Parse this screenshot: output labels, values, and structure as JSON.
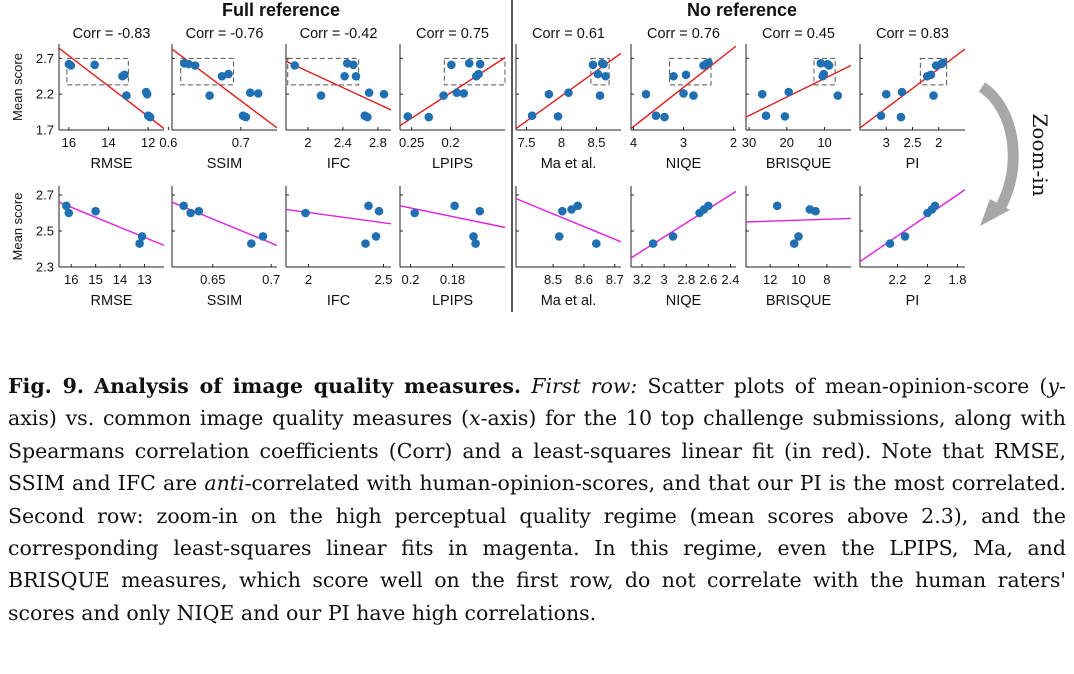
{
  "figure": {
    "group_titles": [
      "Full reference",
      "No reference"
    ],
    "zoom_label": "Zoom-in",
    "colors": {
      "points": "#1f6fb2",
      "fit_row1": "#e01b1b",
      "fit_row2": "#e020e0",
      "zoom_arrow": "#a7a7a7"
    }
  },
  "caption": {
    "fig_label": "Fig. 9.",
    "title": "Analysis of image quality measures.",
    "first_row_label": "First row:",
    "p1": "Scatter plots of mean-opinion-score (",
    "y_var": "y",
    "p2": "-axis) vs. common image quality measures (",
    "x_var": "x",
    "p3": "-axis) for the 10 top challenge submissions, along with Spearmans correlation coefficients (Corr) and a least-squares linear fit (in red). Note that RMSE, SSIM and IFC are ",
    "anti": "anti",
    "p4": "-correlated with human-opinion-scores, and that our PI is the most correlated. Second row: zoom-in on the high perceptual quality regime (mean scores above 2.3), and the corresponding least-squares linear fits in magenta. In this regime, even the LPIPS, Ma, and BRISQUE measures, which score well on the first row, do not correlate with the human raters' scores and only NIQE and our PI have high correlations."
  },
  "chart_data": [
    {
      "type": "scatter",
      "title": "Corr = -0.83",
      "xlabel": "RMSE",
      "ylabel": "Mean score",
      "xlim": [
        16.5,
        11.2
      ],
      "ylim": [
        1.7,
        2.9
      ],
      "xticks": [
        16,
        14,
        12
      ],
      "xtick_labels": [
        "16",
        "14",
        "12"
      ],
      "yticks": [
        1.7,
        2.2,
        2.7
      ],
      "ytick_labels": [
        "1.7",
        "2.2",
        "2.7"
      ],
      "points": [
        [
          16.0,
          2.62
        ],
        [
          15.9,
          2.6
        ],
        [
          14.7,
          2.61
        ],
        [
          13.3,
          2.45
        ],
        [
          13.2,
          2.47
        ],
        [
          13.1,
          2.18
        ],
        [
          12.1,
          2.23
        ],
        [
          12.05,
          2.2
        ],
        [
          12.0,
          1.9
        ],
        [
          11.9,
          1.88
        ]
      ],
      "fit": [
        [
          16.5,
          2.84
        ],
        [
          11.2,
          1.72
        ]
      ],
      "zoom_box": [
        16.1,
        13.0,
        2.33,
        2.7
      ]
    },
    {
      "type": "scatter",
      "title": "Corr = -0.76",
      "xlabel": "SSIM",
      "ylabel": "",
      "xlim": [
        0.605,
        0.75
      ],
      "ylim": [
        1.7,
        2.9
      ],
      "xticks": [
        0.6,
        0.7
      ],
      "xtick_labels": [
        "0.6",
        "0.7"
      ],
      "yticks": [
        1.7,
        2.2,
        2.7
      ],
      "ytick_labels": [],
      "points": [
        [
          0.622,
          2.63
        ],
        [
          0.628,
          2.62
        ],
        [
          0.637,
          2.6
        ],
        [
          0.657,
          2.18
        ],
        [
          0.674,
          2.45
        ],
        [
          0.683,
          2.48
        ],
        [
          0.703,
          1.9
        ],
        [
          0.707,
          1.88
        ],
        [
          0.713,
          2.22
        ],
        [
          0.724,
          2.21
        ]
      ],
      "fit": [
        [
          0.605,
          2.83
        ],
        [
          0.75,
          1.73
        ]
      ],
      "zoom_box": [
        0.617,
        0.69,
        2.33,
        2.7
      ]
    },
    {
      "type": "scatter",
      "title": "Corr = -0.42",
      "xlabel": "IFC",
      "ylabel": "",
      "xlim": [
        1.75,
        2.95
      ],
      "ylim": [
        1.7,
        2.9
      ],
      "xticks": [
        2,
        2.4,
        2.8
      ],
      "xtick_labels": [
        "2",
        "2.4",
        "2.8"
      ],
      "yticks": [
        1.7,
        2.2,
        2.7
      ],
      "ytick_labels": [],
      "points": [
        [
          1.85,
          2.6
        ],
        [
          2.15,
          2.18
        ],
        [
          2.42,
          2.45
        ],
        [
          2.45,
          2.63
        ],
        [
          2.52,
          2.61
        ],
        [
          2.55,
          2.45
        ],
        [
          2.65,
          1.9
        ],
        [
          2.68,
          1.88
        ],
        [
          2.7,
          2.22
        ],
        [
          2.87,
          2.2
        ]
      ],
      "fit": [
        [
          1.75,
          2.66
        ],
        [
          2.95,
          1.98
        ]
      ],
      "zoom_box": [
        1.77,
        2.58,
        2.33,
        2.7
      ]
    },
    {
      "type": "scatter",
      "title": "Corr = 0.75",
      "xlabel": "LPIPS",
      "ylabel": "",
      "xlim": [
        0.265,
        0.13
      ],
      "ylim": [
        1.7,
        2.9
      ],
      "xticks": [
        0.25,
        0.2
      ],
      "xtick_labels": [
        "0.25",
        "0.2"
      ],
      "yticks": [
        1.7,
        2.2,
        2.7
      ],
      "ytick_labels": [],
      "points": [
        [
          0.255,
          1.89
        ],
        [
          0.228,
          1.88
        ],
        [
          0.209,
          2.18
        ],
        [
          0.192,
          2.22
        ],
        [
          0.183,
          2.21
        ],
        [
          0.176,
          2.63
        ],
        [
          0.167,
          2.45
        ],
        [
          0.164,
          2.48
        ],
        [
          0.162,
          2.62
        ],
        [
          0.199,
          2.61
        ]
      ],
      "fit": [
        [
          0.265,
          1.76
        ],
        [
          0.13,
          2.71
        ]
      ],
      "zoom_box": [
        0.208,
        0.13,
        2.33,
        2.7
      ]
    },
    {
      "type": "scatter",
      "title": "Corr = 0.61",
      "xlabel": "Ma et al.",
      "ylabel": "",
      "xlim": [
        7.35,
        8.85
      ],
      "ylim": [
        1.7,
        2.9
      ],
      "xticks": [
        7.5,
        8,
        8.5
      ],
      "xtick_labels": [
        "7.5",
        "8",
        "8.5"
      ],
      "yticks": [
        1.7,
        2.2,
        2.7
      ],
      "ytick_labels": [],
      "points": [
        [
          7.58,
          1.9
        ],
        [
          7.82,
          2.2
        ],
        [
          7.95,
          1.89
        ],
        [
          8.1,
          2.22
        ],
        [
          8.45,
          2.61
        ],
        [
          8.52,
          2.48
        ],
        [
          8.55,
          2.18
        ],
        [
          8.58,
          2.63
        ],
        [
          8.6,
          2.62
        ],
        [
          8.63,
          2.45
        ]
      ],
      "fit": [
        [
          7.35,
          1.72
        ],
        [
          8.85,
          2.77
        ]
      ],
      "zoom_box": [
        8.42,
        8.68,
        2.33,
        2.7
      ]
    },
    {
      "type": "scatter",
      "title": "Corr = 0.76",
      "xlabel": "NIQE",
      "ylabel": "",
      "xlim": [
        4.05,
        1.95
      ],
      "ylim": [
        1.7,
        2.9
      ],
      "xticks": [
        4,
        3,
        2
      ],
      "xtick_labels": [
        "4",
        "3",
        "2"
      ],
      "yticks": [
        1.7,
        2.2,
        2.7
      ],
      "ytick_labels": [],
      "points": [
        [
          3.75,
          2.2
        ],
        [
          3.55,
          1.9
        ],
        [
          3.38,
          1.88
        ],
        [
          3.2,
          2.45
        ],
        [
          3.0,
          2.21
        ],
        [
          2.95,
          2.47
        ],
        [
          2.8,
          2.18
        ],
        [
          2.6,
          2.6
        ],
        [
          2.55,
          2.62
        ],
        [
          2.5,
          2.64
        ]
      ],
      "fit": [
        [
          4.05,
          1.72
        ],
        [
          1.95,
          2.87
        ]
      ],
      "zoom_box": [
        3.28,
        2.45,
        2.33,
        2.7
      ]
    },
    {
      "type": "scatter",
      "title": "Corr = 0.45",
      "xlabel": "BRISQUE",
      "ylabel": "",
      "xlim": [
        30.8,
        3.0
      ],
      "ylim": [
        1.7,
        2.9
      ],
      "xticks": [
        30,
        20,
        10
      ],
      "xtick_labels": [
        "30",
        "20",
        "10"
      ],
      "yticks": [
        1.7,
        2.2,
        2.7
      ],
      "ytick_labels": [],
      "points": [
        [
          26.5,
          2.2
        ],
        [
          25.5,
          1.9
        ],
        [
          20.5,
          1.89
        ],
        [
          19.5,
          2.23
        ],
        [
          11.0,
          2.63
        ],
        [
          10.5,
          2.45
        ],
        [
          10.2,
          2.48
        ],
        [
          9.2,
          2.62
        ],
        [
          8.8,
          2.6
        ],
        [
          6.5,
          2.18
        ]
      ],
      "fit": [
        [
          30.8,
          1.88
        ],
        [
          3.0,
          2.6
        ]
      ],
      "zoom_box": [
        12.8,
        7.2,
        2.33,
        2.7
      ]
    },
    {
      "type": "scatter",
      "title": "Corr = 0.83",
      "xlabel": "PI",
      "ylabel": "",
      "xlim": [
        3.5,
        1.5
      ],
      "ylim": [
        1.7,
        2.9
      ],
      "xticks": [
        3,
        2.5,
        2
      ],
      "xtick_labels": [
        "3",
        "2.5",
        "2"
      ],
      "yticks": [
        1.7,
        2.2,
        2.7
      ],
      "ytick_labels": [],
      "points": [
        [
          3.1,
          1.9
        ],
        [
          3.0,
          2.2
        ],
        [
          2.72,
          1.88
        ],
        [
          2.7,
          2.23
        ],
        [
          2.22,
          2.45
        ],
        [
          2.15,
          2.47
        ],
        [
          2.1,
          2.18
        ],
        [
          2.05,
          2.6
        ],
        [
          1.95,
          2.62
        ],
        [
          1.92,
          2.64
        ]
      ],
      "fit": [
        [
          3.5,
          1.73
        ],
        [
          1.5,
          2.83
        ]
      ],
      "zoom_box": [
        2.35,
        1.85,
        2.33,
        2.7
      ]
    },
    {
      "type": "scatter",
      "title": "",
      "xlabel": "RMSE",
      "ylabel": "Mean score",
      "xlim": [
        16.5,
        12.2
      ],
      "ylim": [
        2.3,
        2.75
      ],
      "xticks": [
        16,
        15,
        14,
        13
      ],
      "xtick_labels": [
        "16",
        "15",
        "14",
        "13"
      ],
      "yticks": [
        2.3,
        2.5,
        2.7
      ],
      "ytick_labels": [
        "2.3",
        "2.5",
        "2.7"
      ],
      "points": [
        [
          16.2,
          2.64
        ],
        [
          16.1,
          2.6
        ],
        [
          15.0,
          2.61
        ],
        [
          13.2,
          2.43
        ],
        [
          13.1,
          2.47
        ]
      ],
      "fit": [
        [
          16.5,
          2.66
        ],
        [
          12.2,
          2.42
        ]
      ]
    },
    {
      "type": "scatter",
      "title": "",
      "xlabel": "SSIM",
      "ylabel": "",
      "xlim": [
        0.615,
        0.705
      ],
      "ylim": [
        2.3,
        2.75
      ],
      "xticks": [
        0.65,
        0.7
      ],
      "xtick_labels": [
        "0.65",
        "0.7"
      ],
      "yticks": [
        2.3,
        2.5,
        2.7
      ],
      "ytick_labels": [],
      "points": [
        [
          0.625,
          2.64
        ],
        [
          0.631,
          2.6
        ],
        [
          0.638,
          2.61
        ],
        [
          0.683,
          2.43
        ],
        [
          0.693,
          2.47
        ]
      ],
      "fit": [
        [
          0.615,
          2.66
        ],
        [
          0.705,
          2.42
        ]
      ]
    },
    {
      "type": "scatter",
      "title": "",
      "xlabel": "IFC",
      "ylabel": "",
      "xlim": [
        1.85,
        2.55
      ],
      "ylim": [
        2.3,
        2.75
      ],
      "xticks": [
        2,
        2.5
      ],
      "xtick_labels": [
        "2",
        "2.5"
      ],
      "yticks": [
        2.3,
        2.5,
        2.7
      ],
      "ytick_labels": [],
      "points": [
        [
          1.98,
          2.6
        ],
        [
          2.38,
          2.43
        ],
        [
          2.4,
          2.64
        ],
        [
          2.45,
          2.47
        ],
        [
          2.47,
          2.61
        ]
      ],
      "fit": [
        [
          1.85,
          2.62
        ],
        [
          2.55,
          2.54
        ]
      ]
    },
    {
      "type": "scatter",
      "title": "",
      "xlabel": "LPIPS",
      "ylabel": "",
      "xlim": [
        0.205,
        0.155
      ],
      "ylim": [
        2.3,
        2.75
      ],
      "xticks": [
        0.2,
        0.18
      ],
      "xtick_labels": [
        "0.2",
        "0.18"
      ],
      "yticks": [
        2.3,
        2.5,
        2.7
      ],
      "ytick_labels": [],
      "points": [
        [
          0.198,
          2.6
        ],
        [
          0.179,
          2.64
        ],
        [
          0.17,
          2.47
        ],
        [
          0.169,
          2.43
        ],
        [
          0.167,
          2.61
        ]
      ],
      "fit": [
        [
          0.205,
          2.64
        ],
        [
          0.155,
          2.52
        ]
      ]
    },
    {
      "type": "scatter",
      "title": "",
      "xlabel": "Ma et al.",
      "ylabel": "",
      "xlim": [
        8.38,
        8.72
      ],
      "ylim": [
        2.3,
        2.75
      ],
      "xticks": [
        8.5,
        8.6,
        8.7
      ],
      "xtick_labels": [
        "8.5",
        "8.6",
        "8.7"
      ],
      "yticks": [
        2.3,
        2.5,
        2.7
      ],
      "ytick_labels": [],
      "points": [
        [
          8.52,
          2.47
        ],
        [
          8.53,
          2.61
        ],
        [
          8.56,
          2.62
        ],
        [
          8.58,
          2.64
        ],
        [
          8.64,
          2.43
        ]
      ],
      "fit": [
        [
          8.38,
          2.68
        ],
        [
          8.72,
          2.44
        ]
      ]
    },
    {
      "type": "scatter",
      "title": "",
      "xlabel": "NIQE",
      "ylabel": "",
      "xlim": [
        3.3,
        2.35
      ],
      "ylim": [
        2.3,
        2.75
      ],
      "xticks": [
        3.2,
        3,
        2.8,
        2.6,
        2.4
      ],
      "xtick_labels": [
        "3.2",
        "3",
        "2.8",
        "2.6",
        "2.4"
      ],
      "yticks": [
        2.3,
        2.5,
        2.7
      ],
      "ytick_labels": [],
      "points": [
        [
          3.1,
          2.43
        ],
        [
          2.92,
          2.47
        ],
        [
          2.68,
          2.6
        ],
        [
          2.64,
          2.62
        ],
        [
          2.6,
          2.64
        ]
      ],
      "fit": [
        [
          3.3,
          2.35
        ],
        [
          2.35,
          2.72
        ]
      ]
    },
    {
      "type": "scatter",
      "title": "",
      "xlabel": "BRISQUE",
      "ylabel": "",
      "xlim": [
        13.7,
        6.3
      ],
      "ylim": [
        2.3,
        2.75
      ],
      "xticks": [
        12,
        10,
        8
      ],
      "xtick_labels": [
        "12",
        "10",
        "8"
      ],
      "yticks": [
        2.3,
        2.5,
        2.7
      ],
      "ytick_labels": [],
      "points": [
        [
          11.5,
          2.64
        ],
        [
          10.3,
          2.43
        ],
        [
          10.0,
          2.47
        ],
        [
          9.2,
          2.62
        ],
        [
          8.8,
          2.61
        ]
      ],
      "fit": [
        [
          13.7,
          2.55
        ],
        [
          6.3,
          2.57
        ]
      ]
    },
    {
      "type": "scatter",
      "title": "",
      "xlabel": "PI",
      "ylabel": "",
      "xlim": [
        2.45,
        1.75
      ],
      "ylim": [
        2.3,
        2.75
      ],
      "xticks": [
        2.2,
        2,
        1.8
      ],
      "xtick_labels": [
        "2.2",
        "2",
        "1.8"
      ],
      "yticks": [
        2.3,
        2.5,
        2.7
      ],
      "ytick_labels": [],
      "points": [
        [
          2.25,
          2.43
        ],
        [
          2.15,
          2.47
        ],
        [
          2.0,
          2.6
        ],
        [
          1.97,
          2.62
        ],
        [
          1.95,
          2.64
        ]
      ],
      "fit": [
        [
          2.45,
          2.33
        ],
        [
          1.75,
          2.73
        ]
      ]
    }
  ]
}
